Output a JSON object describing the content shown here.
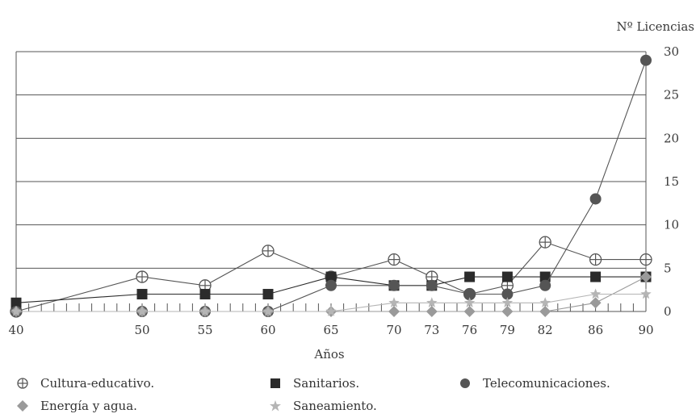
{
  "chart_data": {
    "type": "line",
    "xlabel": "Años",
    "ylabel": "Nº Licencias",
    "x": [
      40,
      50,
      55,
      60,
      65,
      70,
      73,
      76,
      79,
      82,
      86,
      90
    ],
    "x_tick_labels": [
      "40",
      "50",
      "55",
      "60",
      "65",
      "70",
      "73",
      "76",
      "79",
      "82",
      "86",
      "90"
    ],
    "ylim": [
      0,
      30
    ],
    "y_ticks": [
      "0",
      "5",
      "10",
      "15",
      "20",
      "25",
      "30"
    ],
    "grid": "horizontal",
    "legend_position": "bottom",
    "series": [
      {
        "name": "Cultura-educativo.",
        "marker": "circle-plus",
        "color": "#555555",
        "values": [
          0,
          4,
          3,
          7,
          4,
          6,
          4,
          2,
          3,
          8,
          6,
          6
        ]
      },
      {
        "name": "Sanitarios.",
        "marker": "square",
        "color": "#2b2b2b",
        "values": [
          1,
          2,
          2,
          2,
          4,
          3,
          3,
          4,
          4,
          4,
          4,
          4
        ]
      },
      {
        "name": "Telecomunicaciones.",
        "marker": "circle",
        "color": "#555555",
        "values": [
          0,
          0,
          0,
          0,
          3,
          3,
          3,
          2,
          2,
          3,
          13,
          29
        ]
      },
      {
        "name": "Energía y agua.",
        "marker": "diamond",
        "color": "#9a9a9a",
        "values": [
          0,
          0,
          0,
          0,
          0,
          0,
          0,
          0,
          0,
          0,
          1,
          4
        ]
      },
      {
        "name": "Saneamiento.",
        "marker": "star",
        "color": "#b5b5b5",
        "values": [
          0,
          0,
          0,
          0,
          0,
          1,
          1,
          1,
          1,
          1,
          2,
          2
        ]
      }
    ]
  },
  "legend": {
    "items": [
      {
        "label": "Cultura-educativo.",
        "marker": "circle-plus"
      },
      {
        "label": "Sanitarios.",
        "marker": "square"
      },
      {
        "label": "Telecomunicaciones.",
        "marker": "circle"
      },
      {
        "label": "Energía y agua.",
        "marker": "diamond"
      },
      {
        "label": "Saneamiento.",
        "marker": "star"
      }
    ]
  }
}
